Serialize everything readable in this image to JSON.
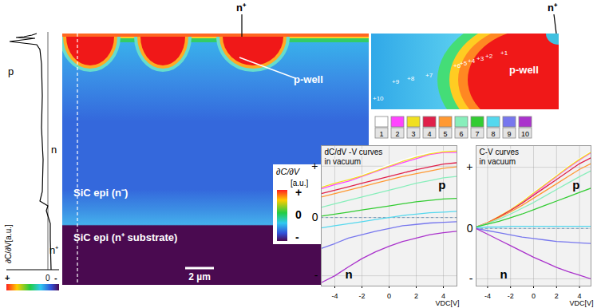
{
  "figure": {
    "profile": {
      "labels": [
        "p",
        "n",
        "n⁺"
      ],
      "axis_label": "∂C/∂V[a.u.]",
      "scale": [
        "+",
        "0",
        "-"
      ]
    },
    "map": {
      "surface_label": "n⁺",
      "well_label": "p-well",
      "epi_label": "SiC epi (n⁻)",
      "substrate_label": "SiC epi (n⁺ substrate)",
      "colorbar": {
        "title": "∂C/∂V",
        "unit": "[a.u.]",
        "ticks": [
          "+",
          "0",
          "-"
        ]
      },
      "scale_bar": "2 µm"
    },
    "inset": {
      "surface_label": "n⁺",
      "well_label": "p-well",
      "points": [
        "+1",
        "+2",
        "+3",
        "+4",
        "+5",
        "+6",
        "+7",
        "+8",
        "+9",
        "+10"
      ]
    }
  },
  "chart_data": [
    {
      "type": "line",
      "title": "dC/dV -V curves",
      "subtitle": "in vacuum",
      "x_label": "VDC[V]",
      "legend": "top",
      "x": [
        -5,
        -4,
        -3,
        -2,
        -1,
        0,
        1,
        2,
        3,
        4,
        5
      ],
      "xlim": [
        -5,
        5
      ],
      "xticks": [
        -4,
        -2,
        0,
        2,
        4
      ],
      "ylim": [
        -1.0,
        1.05
      ],
      "yticks": [
        {
          "value": 0.75,
          "label": "+"
        },
        0,
        {
          "value": -0.85,
          "label": "-"
        }
      ],
      "grid": true,
      "annotations": [
        "p",
        "n"
      ],
      "series": [
        {
          "name": "1",
          "color": "#ffffff",
          "values": [
            0.45,
            0.5,
            0.55,
            0.62,
            0.7,
            0.77,
            0.84,
            0.9,
            0.95,
            0.97,
            0.96
          ]
        },
        {
          "name": "2",
          "color": "#ff44ff",
          "values": [
            0.42,
            0.48,
            0.53,
            0.6,
            0.67,
            0.74,
            0.8,
            0.86,
            0.92,
            0.95,
            0.95
          ]
        },
        {
          "name": "3",
          "color": "#f0e020",
          "values": [
            0.44,
            0.5,
            0.55,
            0.61,
            0.68,
            0.75,
            0.82,
            0.88,
            0.93,
            0.96,
            0.97
          ]
        },
        {
          "name": "4",
          "color": "#e0204a",
          "values": [
            0.35,
            0.4,
            0.45,
            0.5,
            0.55,
            0.6,
            0.65,
            0.7,
            0.74,
            0.78,
            0.8
          ]
        },
        {
          "name": "5",
          "color": "#ff9933",
          "values": [
            0.3,
            0.35,
            0.4,
            0.45,
            0.5,
            0.55,
            0.6,
            0.64,
            0.68,
            0.72,
            0.74
          ]
        },
        {
          "name": "6",
          "color": "#88eebb",
          "values": [
            0.15,
            0.2,
            0.25,
            0.3,
            0.35,
            0.4,
            0.45,
            0.5,
            0.54,
            0.58,
            0.6
          ]
        },
        {
          "name": "7",
          "color": "#33cc33",
          "values": [
            0.02,
            0.05,
            0.08,
            0.11,
            0.14,
            0.17,
            0.2,
            0.23,
            0.25,
            0.27,
            0.28
          ]
        },
        {
          "name": "8",
          "color": "#55d8ee",
          "values": [
            -0.15,
            -0.12,
            -0.09,
            -0.06,
            -0.03,
            0,
            0.03,
            0.05,
            0.07,
            0.08,
            0.09
          ]
        },
        {
          "name": "9",
          "color": "#7777ee",
          "values": [
            -0.45,
            -0.38,
            -0.3,
            -0.25,
            -0.2,
            -0.16,
            -0.12,
            -0.1,
            -0.08,
            -0.07,
            -0.06
          ]
        },
        {
          "name": "10",
          "color": "#aa33cc",
          "values": [
            -0.95,
            -0.85,
            -0.72,
            -0.6,
            -0.5,
            -0.42,
            -0.35,
            -0.3,
            -0.25,
            -0.22,
            -0.2
          ]
        }
      ]
    },
    {
      "type": "line",
      "title": "C-V curves",
      "subtitle": "in vacuum",
      "x_label": "VDC[V]",
      "x": [
        -5,
        -4,
        -3,
        -2,
        -1,
        0,
        1,
        2,
        3,
        4,
        5
      ],
      "xlim": [
        -5,
        5
      ],
      "xticks": [
        -4,
        -2,
        0,
        2,
        4
      ],
      "ylim": [
        -0.8,
        1.15
      ],
      "yticks": [
        {
          "value": 0.85,
          "label": "+"
        },
        0,
        {
          "value": -0.7,
          "label": "-"
        }
      ],
      "grid": true,
      "annotations": [
        "p",
        "n"
      ],
      "series": [
        {
          "name": "1",
          "color": "#ffffff",
          "values": [
            0.02,
            0.09,
            0.17,
            0.27,
            0.38,
            0.5,
            0.62,
            0.74,
            0.86,
            0.97,
            1.07
          ]
        },
        {
          "name": "2",
          "color": "#ff44ff",
          "values": [
            0.02,
            0.08,
            0.16,
            0.26,
            0.36,
            0.48,
            0.6,
            0.72,
            0.84,
            0.95,
            1.05
          ]
        },
        {
          "name": "3",
          "color": "#f0e020",
          "values": [
            0.02,
            0.08,
            0.17,
            0.26,
            0.37,
            0.49,
            0.61,
            0.73,
            0.85,
            0.96,
            1.06
          ]
        },
        {
          "name": "4",
          "color": "#e0204a",
          "values": [
            0.02,
            0.08,
            0.16,
            0.25,
            0.35,
            0.46,
            0.57,
            0.68,
            0.79,
            0.9,
            0.98
          ]
        },
        {
          "name": "5",
          "color": "#ff9933",
          "values": [
            0.02,
            0.08,
            0.15,
            0.23,
            0.32,
            0.42,
            0.52,
            0.62,
            0.72,
            0.82,
            0.9
          ]
        },
        {
          "name": "6",
          "color": "#88eebb",
          "values": [
            0.02,
            0.07,
            0.13,
            0.2,
            0.28,
            0.36,
            0.45,
            0.54,
            0.63,
            0.72,
            0.8
          ]
        },
        {
          "name": "7",
          "color": "#33cc33",
          "values": [
            0.02,
            0.06,
            0.1,
            0.15,
            0.2,
            0.26,
            0.32,
            0.38,
            0.44,
            0.5,
            0.56
          ]
        },
        {
          "name": "8",
          "color": "#55d8ee",
          "values": [
            0.01,
            0.02,
            0.02,
            0.03,
            0.03,
            0.03,
            0.03,
            0.03,
            0.03,
            0.03,
            0.03
          ]
        },
        {
          "name": "9",
          "color": "#7777ee",
          "values": [
            0.0,
            -0.03,
            -0.06,
            -0.09,
            -0.12,
            -0.14,
            -0.16,
            -0.18,
            -0.19,
            -0.2,
            -0.21
          ]
        },
        {
          "name": "10",
          "color": "#aa33cc",
          "values": [
            0.0,
            -0.08,
            -0.16,
            -0.24,
            -0.32,
            -0.4,
            -0.47,
            -0.54,
            -0.6,
            -0.65,
            -0.7
          ]
        }
      ]
    }
  ]
}
